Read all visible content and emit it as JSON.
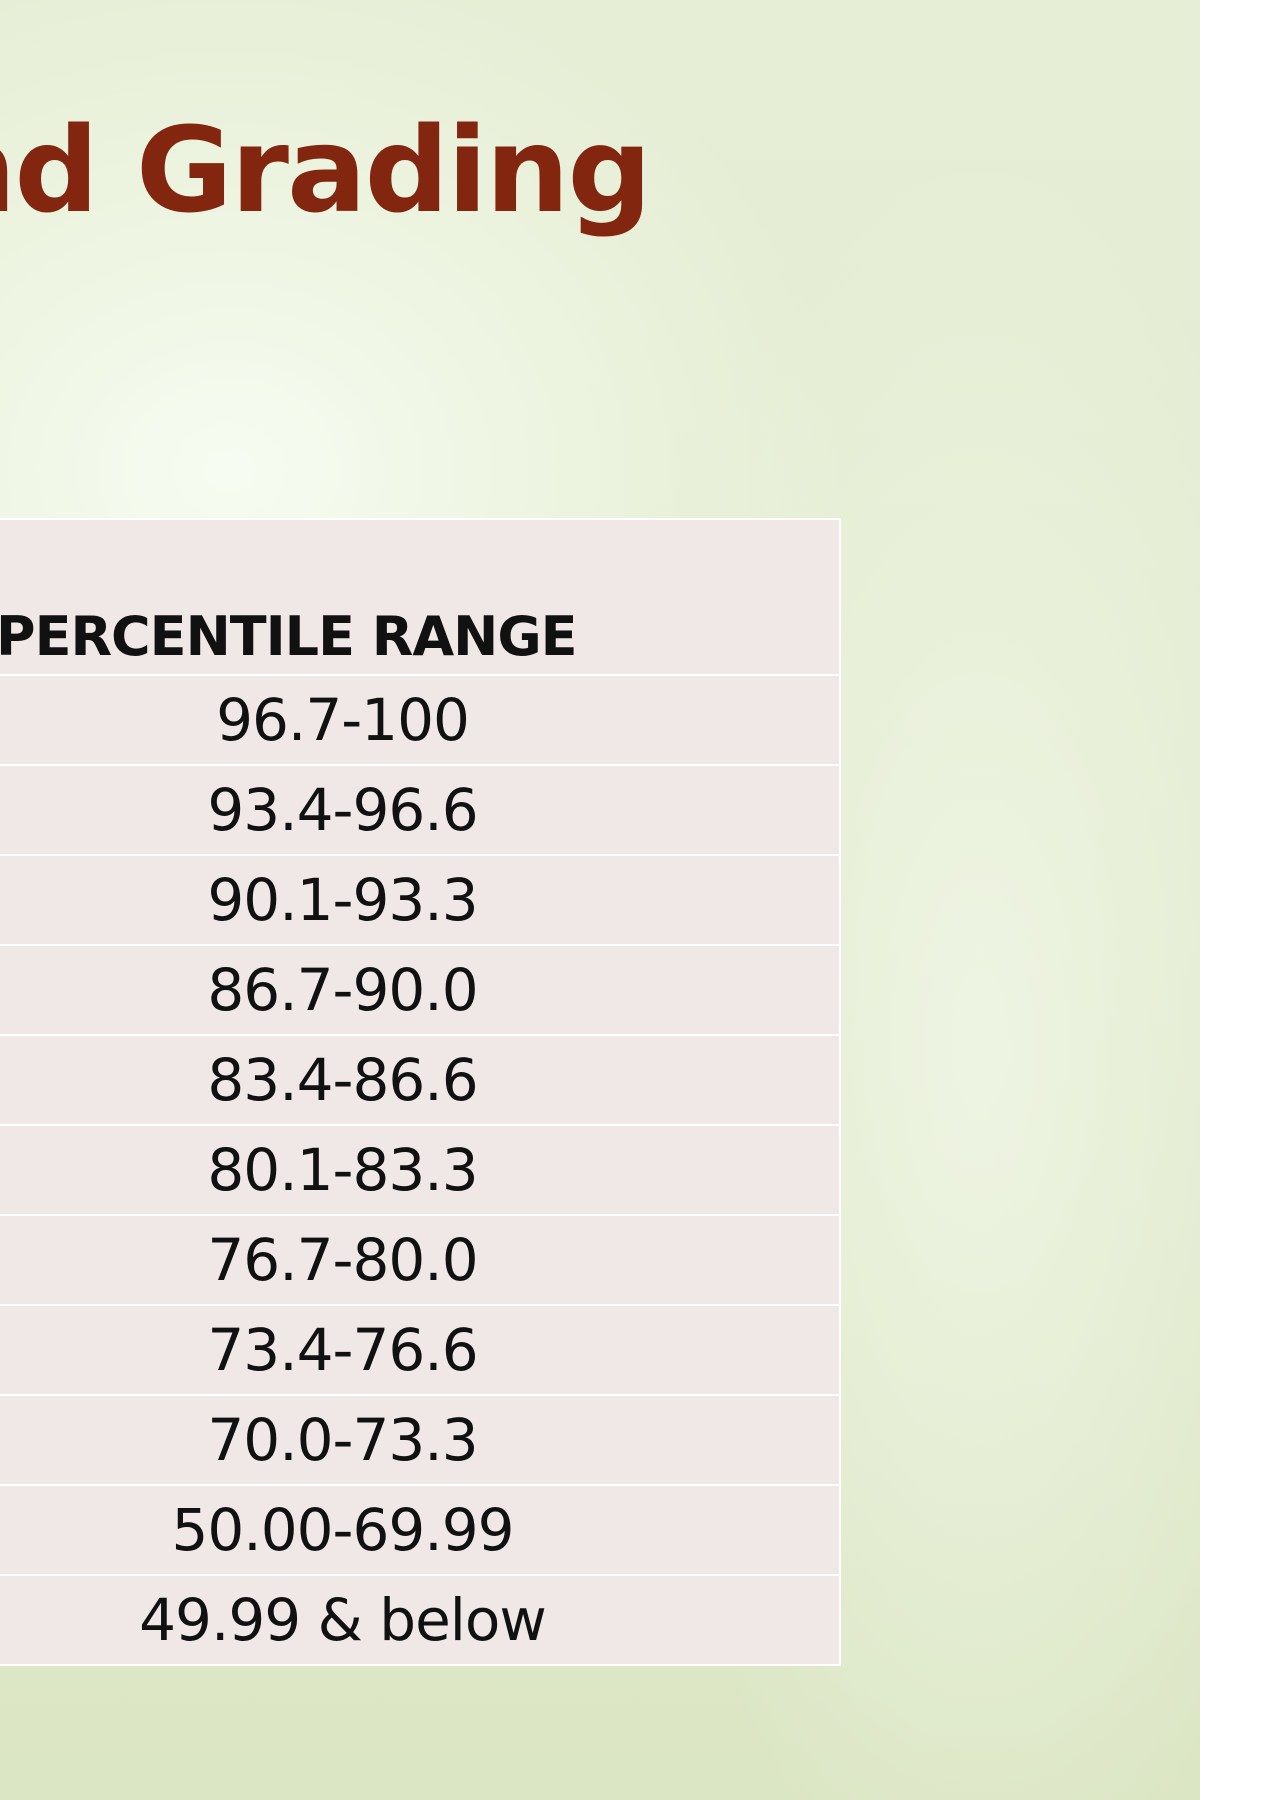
{
  "title": "nd Grading",
  "table": {
    "header": "PERCENTILE RANGE",
    "rows": [
      "96.7-100",
      "93.4-96.6",
      "90.1-93.3",
      "86.7-90.0",
      "83.4-86.6",
      "80.1-83.3",
      "76.7-80.0",
      "73.4-76.6",
      "70.0-73.3",
      "50.00-69.99",
      "49.99 & below"
    ]
  },
  "colors": {
    "title": "#83260f",
    "table_fill": "#f0e8e7",
    "table_rule": "#ffffff",
    "background": "#e2ebcf"
  }
}
